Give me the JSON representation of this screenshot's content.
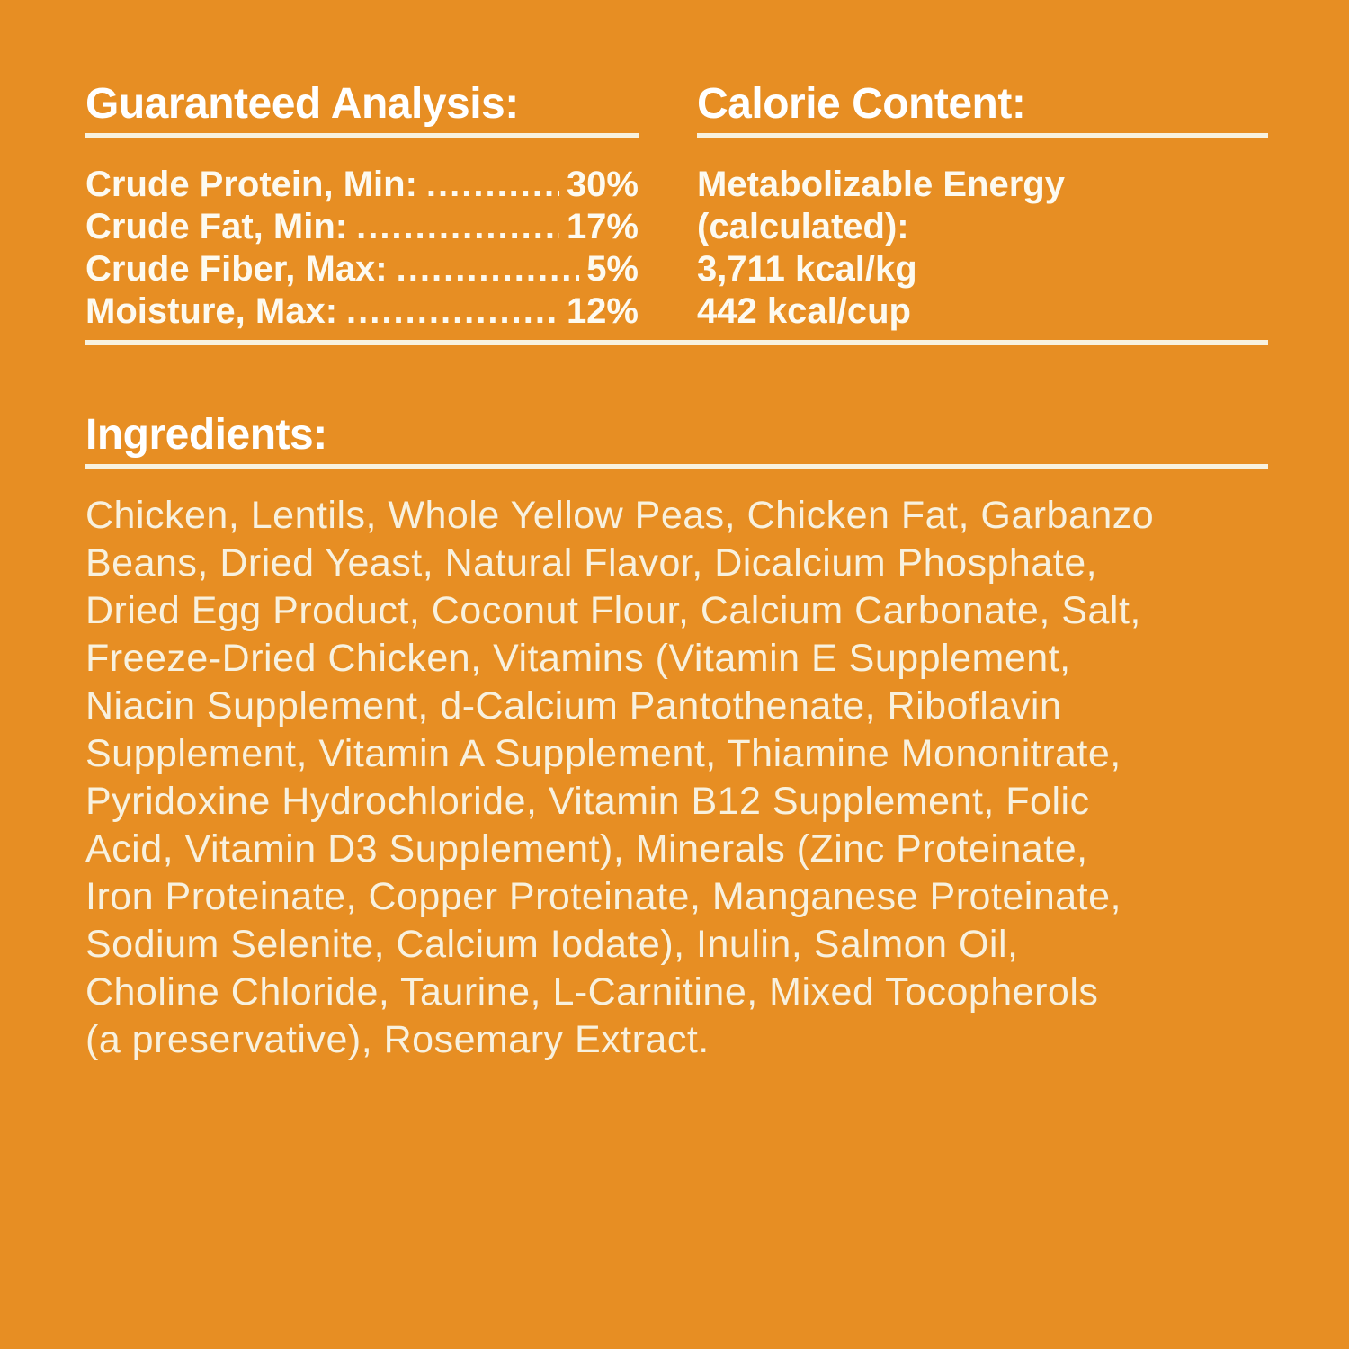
{
  "label": {
    "background_color": "#E78E23",
    "heading_color": "#FFFFFF",
    "body_text_color": "#F8F1DE",
    "rule_color": "#F8F2DF"
  },
  "guaranteed_analysis": {
    "title": "Guaranteed Analysis:",
    "rows": [
      {
        "label": "Crude Protein, Min:",
        "dots": "........................................",
        "value": "30%"
      },
      {
        "label": "Crude Fat, Min:",
        "dots": "........................................",
        "value": "17%"
      },
      {
        "label": "Crude Fiber, Max:",
        "dots": "........................................",
        "value": "5%"
      },
      {
        "label": "Moisture, Max:",
        "dots": "........................................",
        "value": "12%"
      }
    ]
  },
  "calorie_content": {
    "title": "Calorie Content:",
    "lines": [
      "Metabolizable Energy",
      "(calculated):",
      "3,711 kcal/kg",
      "442 kcal/cup"
    ]
  },
  "ingredients": {
    "title": "Ingredients:",
    "lines": [
      "Chicken, Lentils, Whole Yellow Peas, Chicken Fat, Garbanzo",
      "Beans, Dried Yeast, Natural Flavor, Dicalcium Phosphate,",
      "Dried Egg Product, Coconut Flour, Calcium Carbonate, Salt,",
      "Freeze-Dried Chicken, Vitamins (Vitamin E Supplement,",
      "Niacin Supplement, d-Calcium Pantothenate, Riboflavin",
      "Supplement, Vitamin A Supplement, Thiamine Mononitrate,",
      "Pyridoxine Hydrochloride, Vitamin B12 Supplement, Folic",
      "Acid, Vitamin D3 Supplement), Minerals (Zinc Proteinate,",
      "Iron Proteinate, Copper Proteinate, Manganese Proteinate,",
      "Sodium Selenite, Calcium Iodate), Inulin, Salmon Oil,",
      "Choline Chloride, Taurine, L-Carnitine, Mixed Tocopherols",
      "(a preservative), Rosemary Extract."
    ]
  }
}
